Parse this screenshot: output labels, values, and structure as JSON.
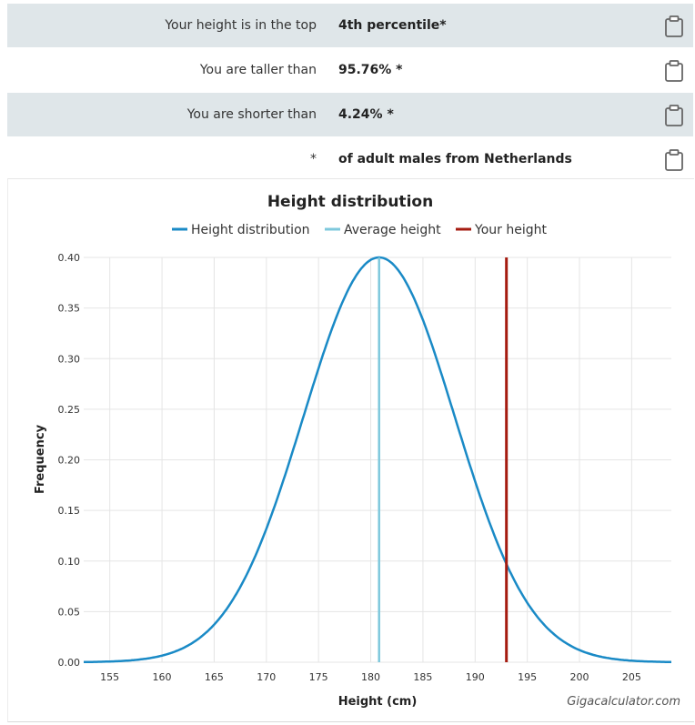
{
  "results": [
    {
      "label": "Your height is in the top",
      "value": "4th percentile*"
    },
    {
      "label": "You are taller than",
      "value": "95.76% *"
    },
    {
      "label": "You are shorter than",
      "value": "4.24% *"
    },
    {
      "label": "*",
      "value": "of adult males from Netherlands"
    }
  ],
  "chart_data": {
    "type": "line",
    "title": "Height distribution",
    "xlabel": "Height (cm)",
    "ylabel": "Frequency",
    "xlim": [
      152.5,
      208.8
    ],
    "ylim": [
      0,
      0.4
    ],
    "x_ticks": [
      "155",
      "160",
      "165",
      "170",
      "175",
      "180",
      "185",
      "190",
      "195",
      "200",
      "205"
    ],
    "y_ticks": [
      "0.00",
      "0.05",
      "0.10",
      "0.15",
      "0.20",
      "0.25",
      "0.30",
      "0.35",
      "0.40"
    ],
    "grid": true,
    "legend_position": "top",
    "series": [
      {
        "name": "Height distribution",
        "color": "#1a8ac6",
        "kind": "normal-curve",
        "mean": 180.8,
        "sd": 7.25,
        "peak": 0.4
      },
      {
        "name": "Average height",
        "color": "#7ec8dc",
        "kind": "vline",
        "x": 180.8
      },
      {
        "name": "Your height",
        "color": "#a51b10",
        "kind": "vline",
        "x": 193.0
      }
    ],
    "watermark": "Gigacalculator.com"
  }
}
